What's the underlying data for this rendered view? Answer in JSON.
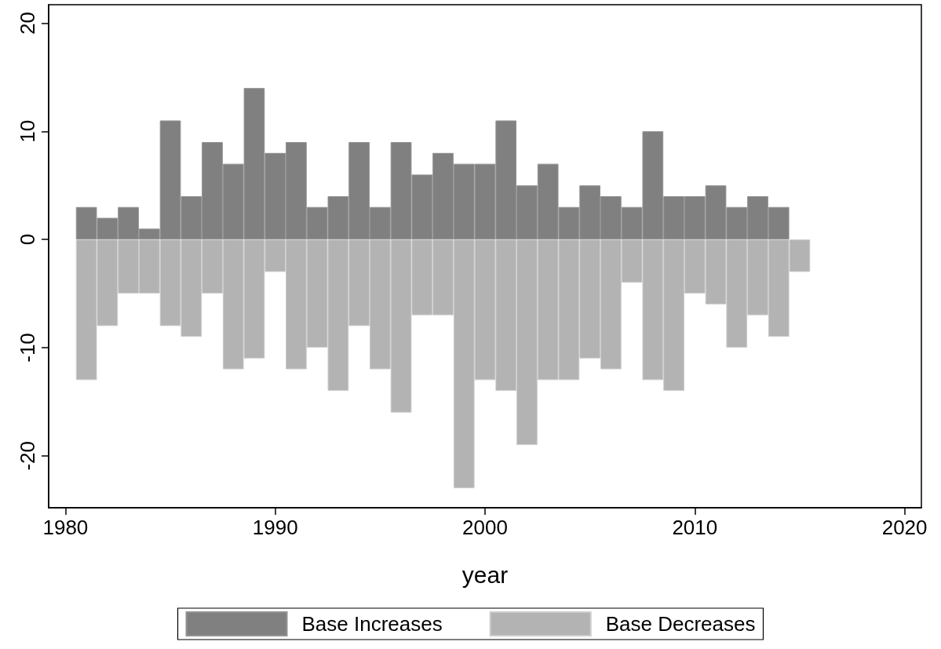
{
  "chart_data": {
    "type": "bar",
    "xlabel": "year",
    "x": [
      1981,
      1982,
      1983,
      1984,
      1985,
      1986,
      1987,
      1988,
      1989,
      1990,
      1991,
      1992,
      1993,
      1994,
      1995,
      1996,
      1997,
      1998,
      1999,
      2000,
      2001,
      2002,
      2003,
      2004,
      2005,
      2006,
      2007,
      2008,
      2009,
      2010,
      2011,
      2012,
      2013,
      2014,
      2015
    ],
    "series": [
      {
        "name": "Base Increases",
        "color": "#808080",
        "values": [
          3,
          2,
          3,
          1,
          11,
          4,
          9,
          7,
          14,
          8,
          9,
          3,
          4,
          9,
          3,
          9,
          6,
          8,
          7,
          7,
          11,
          5,
          7,
          3,
          5,
          4,
          3,
          10,
          4,
          4,
          5,
          3,
          4,
          3,
          null
        ]
      },
      {
        "name": "Base Decreases",
        "color": "#b3b3b3",
        "values": [
          -13,
          -8,
          -5,
          -5,
          -8,
          -9,
          -5,
          -12,
          -11,
          -3,
          -12,
          -10,
          -14,
          -8,
          -12,
          -16,
          -7,
          -7,
          -23,
          -13,
          -14,
          -19,
          -13,
          -13,
          -11,
          -12,
          -4,
          -13,
          -14,
          -5,
          -6,
          -10,
          -7,
          -9,
          -3
        ]
      }
    ],
    "xlim": [
      1979.2,
      2020.8
    ],
    "xticks": [
      1980,
      1990,
      2000,
      2010,
      2020
    ],
    "ylim": [
      -24.8,
      21.7
    ],
    "yticks": [
      -20,
      -10,
      0,
      10,
      20
    ],
    "legend": "bottom",
    "grid": false,
    "stacked": true
  }
}
